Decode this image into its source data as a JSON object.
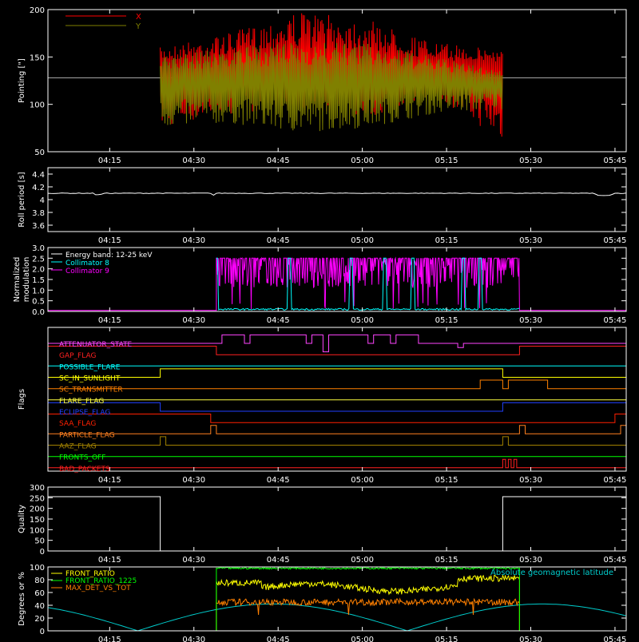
{
  "chart_data": [
    {
      "type": "line",
      "ylabel": "Pointing [\"]",
      "ylim": [
        50,
        200
      ],
      "yticks": [
        50,
        100,
        150,
        200
      ],
      "x_ticks": [
        "04:15",
        "04:30",
        "04:45",
        "05:00",
        "05:15",
        "05:30",
        "05:45"
      ],
      "legend": {
        "placement": "top-left",
        "entries": [
          {
            "name": "X",
            "color": "#ff0000"
          },
          {
            "name": "Y",
            "color": "#808000"
          }
        ]
      },
      "active_range": [
        "04:24",
        "05:25"
      ],
      "reference_line": 128,
      "series": [
        {
          "name": "X",
          "color": "#ff0000",
          "center": 135,
          "low": [
            75,
            90,
            95,
            85,
            110,
            60
          ],
          "high": [
            160,
            175,
            198,
            190,
            165,
            158
          ]
        },
        {
          "name": "Y",
          "color": "#808000",
          "center": 125,
          "low": [
            75,
            80,
            70,
            75,
            90,
            95
          ],
          "high": [
            150,
            160,
            165,
            165,
            150,
            135
          ]
        }
      ]
    },
    {
      "type": "line",
      "ylabel": "Roll period [s]",
      "ylim": [
        3.5,
        4.5
      ],
      "yticks": [
        3.6,
        3.8,
        4.0,
        4.2,
        4.4
      ],
      "x_ticks": [
        "04:15",
        "04:30",
        "04:45",
        "05:00",
        "05:15",
        "05:30",
        "05:45"
      ],
      "series": [
        {
          "name": "roll",
          "color": "#ffffff",
          "value": 4.1
        }
      ]
    },
    {
      "type": "line",
      "ylabel": "Normalized modulation",
      "ylim": [
        0,
        3.0
      ],
      "yticks": [
        0.0,
        0.5,
        1.0,
        1.5,
        2.0,
        2.5,
        3.0
      ],
      "ytick_labels": [
        "0.0",
        "0.5",
        "1.0",
        "1.5",
        "2.0",
        "2.5",
        "3.0"
      ],
      "x_ticks": [
        "04:15",
        "04:30",
        "04:45",
        "05:00",
        "05:15",
        "05:30",
        "05:45"
      ],
      "legend": {
        "placement": "top-left",
        "entries": [
          {
            "name": "Energy band: 12-25 keV",
            "color": "#ffffff"
          },
          {
            "name": "Collimator 8",
            "color": "#00ffff"
          },
          {
            "name": "Collimator 9",
            "color": "#ff00ff"
          }
        ]
      },
      "active_range": [
        "04:34",
        "05:28"
      ],
      "series": [
        {
          "name": "Collimator 8",
          "color": "#00ffff",
          "base": 0.1,
          "spikes": [
            "04:34",
            "04:47",
            "04:58",
            "05:04",
            "05:09",
            "05:18",
            "05:21"
          ],
          "spike_height": 2.5
        },
        {
          "name": "Collimator 9",
          "color": "#ff00ff",
          "base": 2.5,
          "level_after": 0.05
        }
      ]
    },
    {
      "type": "line",
      "ylabel": "Flags",
      "x_ticks": [
        "04:15",
        "04:30",
        "04:45",
        "05:00",
        "05:15",
        "05:30",
        "05:45"
      ],
      "flags": [
        {
          "name": "ATTENUATOR_STATE",
          "color": "#ff44ff"
        },
        {
          "name": "GAP_FLAG",
          "color": "#ff2020"
        },
        {
          "name": "POSSIBLE_FLARE",
          "color": "#00ffff"
        },
        {
          "name": "SC_IN_SUNLIGHT",
          "color": "#ffff00"
        },
        {
          "name": "SC_TRANSMITTER",
          "color": "#ff8000"
        },
        {
          "name": "FLARE_FLAG",
          "color": "#ffff40"
        },
        {
          "name": "ECLIPSE_FLAG",
          "color": "#2040ff"
        },
        {
          "name": "SAA_FLAG",
          "color": "#ff2000"
        },
        {
          "name": "PARTICLE_FLAG",
          "color": "#ff8020"
        },
        {
          "name": "AAZ_FLAG",
          "color": "#a08000"
        },
        {
          "name": "FRONTS_OFF",
          "color": "#00ff00"
        },
        {
          "name": "BAD_PACKETS",
          "color": "#ff2020"
        }
      ]
    },
    {
      "type": "line",
      "ylabel": "Quality",
      "ylim": [
        0,
        300
      ],
      "yticks": [
        0,
        50,
        100,
        150,
        200,
        250,
        300
      ],
      "x_ticks": [
        "04:15",
        "04:30",
        "04:45",
        "05:00",
        "05:15",
        "05:30",
        "05:45"
      ],
      "series": [
        {
          "name": "quality",
          "color": "#ffffff",
          "x": [
            "04:04",
            "04:24",
            "04:24",
            "05:25",
            "05:25",
            "05:47"
          ],
          "values": [
            255,
            255,
            0,
            0,
            255,
            255
          ]
        }
      ]
    },
    {
      "type": "line",
      "ylabel": "Degrees or %",
      "ylim": [
        0,
        100
      ],
      "yticks": [
        0,
        20,
        40,
        60,
        80,
        100
      ],
      "x_ticks": [
        "04:15",
        "04:30",
        "04:45",
        "05:00",
        "05:15",
        "05:30",
        "05:45"
      ],
      "legend": {
        "placement": "top-left",
        "entries": [
          {
            "name": "FRONT_RATIO",
            "color": "#ffff00"
          },
          {
            "name": "FRONT_RATIO_1225",
            "color": "#00ff00"
          },
          {
            "name": "MAX_DET_VS_TOT",
            "color": "#ff8000"
          }
        ]
      },
      "annotation": {
        "text": "Absolute geomagnetic latitude",
        "color": "#00cccc",
        "placement": "top-right"
      },
      "active_range": [
        "04:34",
        "05:28"
      ],
      "series": [
        {
          "name": "FRONT_RATIO_1225",
          "color": "#00ff00",
          "level": 98
        },
        {
          "name": "FRONT_RATIO",
          "color": "#ffff00",
          "level": 75
        },
        {
          "name": "MAX_DET_VS_TOT",
          "color": "#ff8000",
          "level": 45
        },
        {
          "name": "Absolute geomagnetic latitude",
          "color": "#00cccc",
          "period_min": 96,
          "amplitude": 42
        }
      ]
    }
  ]
}
